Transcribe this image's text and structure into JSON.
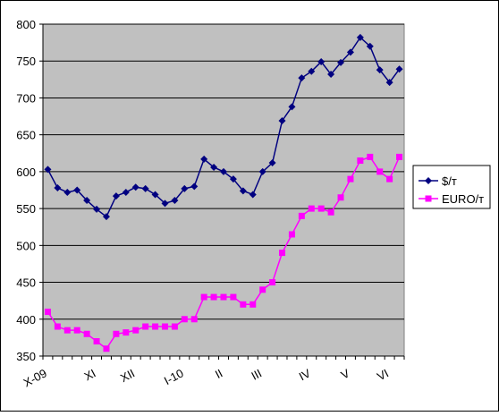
{
  "chart_data": {
    "type": "line",
    "categories": [
      "X-09",
      null,
      null,
      null,
      null,
      "XI",
      null,
      null,
      null,
      "XII",
      null,
      null,
      null,
      null,
      "I-10",
      null,
      null,
      null,
      "II",
      null,
      null,
      null,
      "III",
      null,
      null,
      null,
      null,
      "IV",
      null,
      null,
      null,
      "V",
      null,
      null,
      null,
      "VI",
      null
    ],
    "series": [
      {
        "name": "$/т",
        "color": "#000080",
        "marker": "diamond",
        "values": [
          603,
          578,
          572,
          575,
          561,
          549,
          539,
          567,
          572,
          579,
          577,
          569,
          557,
          561,
          577,
          580,
          617,
          606,
          600,
          590,
          574,
          569,
          600,
          612,
          669,
          688,
          727,
          736,
          749,
          732,
          748,
          762,
          782,
          770,
          738,
          721,
          739
        ]
      },
      {
        "name": "EURO/т",
        "color": "#ff00ff",
        "marker": "square",
        "values": [
          410,
          390,
          385,
          385,
          380,
          370,
          360,
          380,
          382,
          385,
          390,
          390,
          390,
          390,
          400,
          400,
          430,
          430,
          430,
          430,
          420,
          420,
          440,
          450,
          490,
          515,
          540,
          550,
          550,
          545,
          565,
          590,
          615,
          620,
          600,
          590,
          620
        ]
      }
    ],
    "ylim": [
      350,
      800
    ],
    "yticks": [
      350,
      400,
      450,
      500,
      550,
      600,
      650,
      700,
      750,
      800
    ],
    "grid": true,
    "legend": "right"
  }
}
